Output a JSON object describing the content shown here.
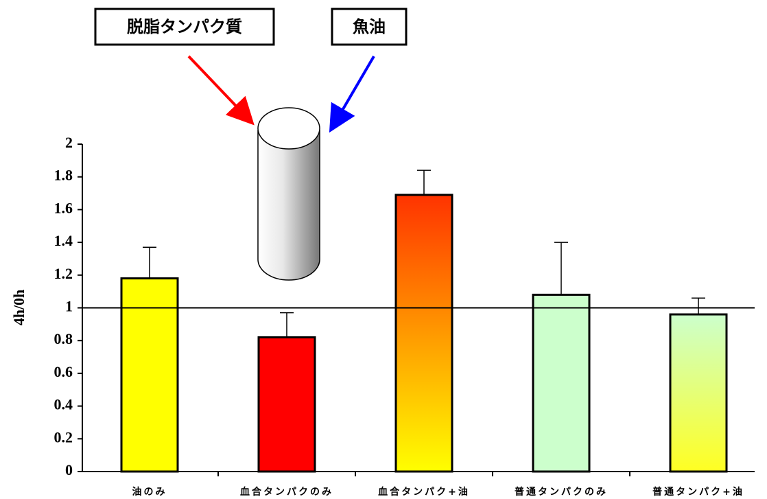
{
  "chart_data": {
    "type": "bar",
    "y_label": "4h/0h",
    "categories": [
      "油のみ",
      "血合タンパクのみ",
      "血合タンパク+油",
      "普通タンパクのみ",
      "普通タンパク+油"
    ],
    "values": [
      1.18,
      0.82,
      1.69,
      1.08,
      0.96
    ],
    "errors": [
      0.19,
      0.15,
      0.15,
      0.32,
      0.1
    ],
    "colors": [
      "#FFFF00",
      "#FF0000",
      [
        "#FF3300",
        "#FFFF00"
      ],
      "#CCFFCC",
      [
        "#CCFFCC",
        "#FFFF22"
      ]
    ],
    "reference_line": 1,
    "ylim": [
      0,
      2
    ],
    "yticks": [
      0,
      0.2,
      0.4,
      0.6,
      0.8,
      1,
      1.2,
      1.4,
      1.6,
      1.8,
      2
    ],
    "annotations": [
      "脱脂タンパク質",
      "魚油"
    ]
  }
}
